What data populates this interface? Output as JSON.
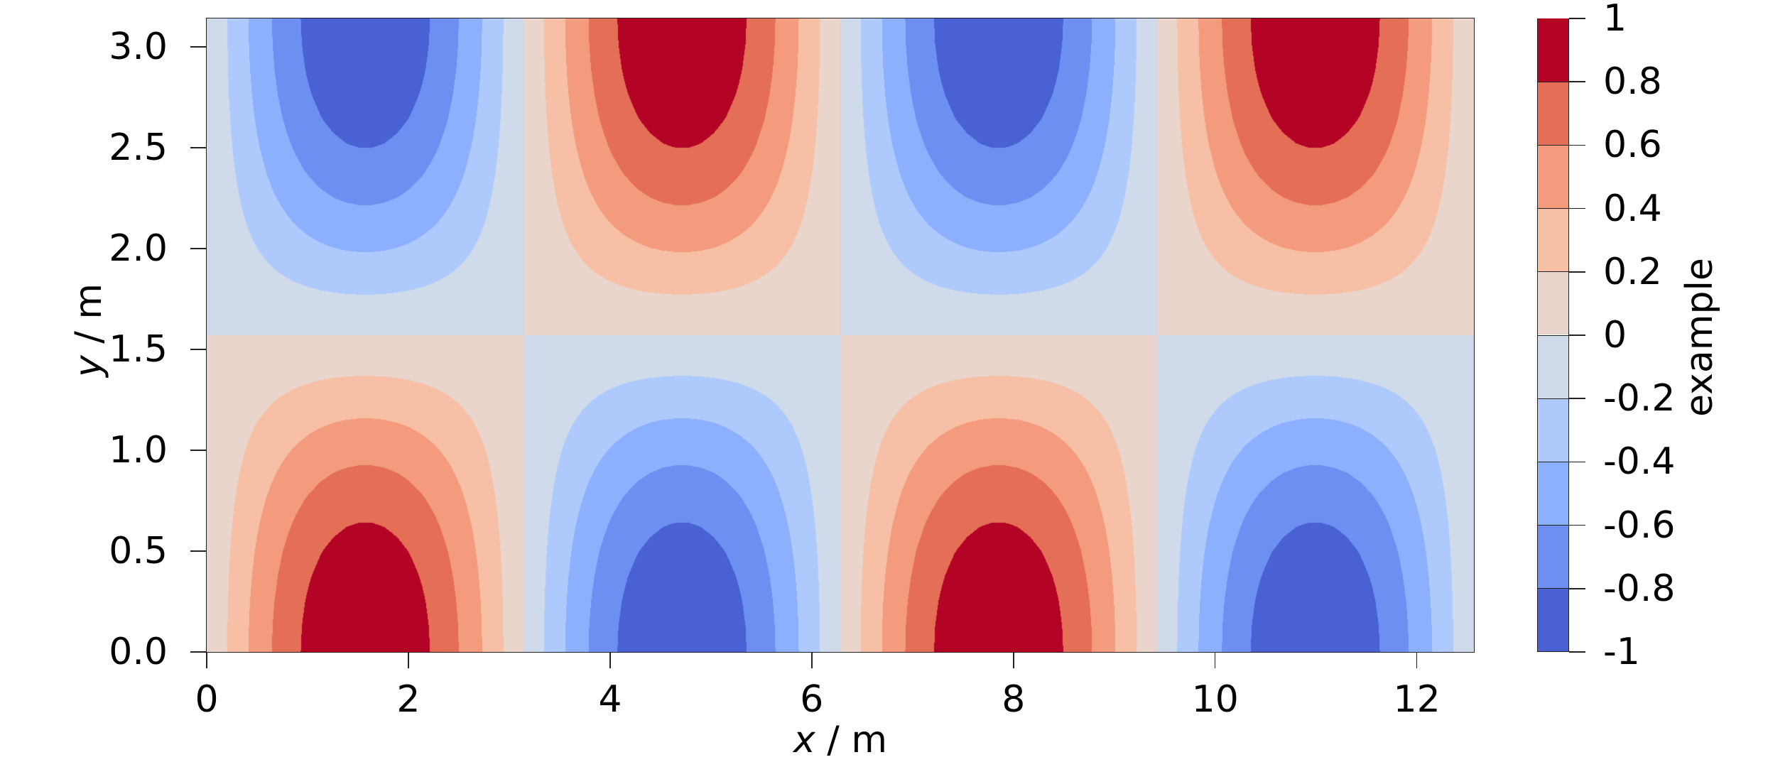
{
  "chart_data": {
    "type": "contourf",
    "title": "",
    "function": "z = sin(x) * cos(y)",
    "x_range": [
      0,
      12.566
    ],
    "y_range": [
      0,
      3.1416
    ],
    "xlabel": {
      "var": "x",
      "unit": " / m"
    },
    "ylabel": {
      "var": "y",
      "unit": " / m"
    },
    "xlim": [
      0,
      12.566
    ],
    "ylim": [
      0,
      3.1416
    ],
    "xticks": [
      0,
      2,
      4,
      6,
      8,
      10,
      12
    ],
    "xtick_labels": [
      "0",
      "2",
      "4",
      "6",
      "8",
      "10",
      "12"
    ],
    "yticks": [
      0.0,
      0.5,
      1.0,
      1.5,
      2.0,
      2.5,
      3.0
    ],
    "ytick_labels": [
      "0.0",
      "0.5",
      "1.0",
      "1.5",
      "2.0",
      "2.5",
      "3.0"
    ],
    "grid_resolution": 25,
    "levels": [
      -1,
      -0.8,
      -0.6,
      -0.4,
      -0.2,
      0,
      0.2,
      0.4,
      0.6,
      0.8,
      1
    ],
    "level_colors": [
      "#4961d2",
      "#6c8ff1",
      "#8db0fe",
      "#aec9fc",
      "#cfdaea",
      "#e9d5cb",
      "#f6bfa6",
      "#f39b7c",
      "#e46e56",
      "#b40426"
    ],
    "colormap": "coolwarm",
    "grid": false,
    "colorbar": {
      "label": "example",
      "ticks": [
        1,
        0.8,
        0.6,
        0.4,
        0.2,
        0,
        -0.2,
        -0.4,
        -0.6,
        -0.8,
        -1
      ],
      "tick_labels": [
        "1",
        "0.8",
        "0.6",
        "0.4",
        "0.2",
        "0",
        "-0.2",
        "-0.4",
        "-0.6",
        "-0.8",
        "-1"
      ],
      "position": "right"
    },
    "features": [
      {
        "type": "max",
        "value": 1,
        "x": 1.571,
        "y": 0
      },
      {
        "type": "min",
        "value": -1,
        "x": 1.571,
        "y": 3.1416
      },
      {
        "type": "min",
        "value": -1,
        "x": 4.712,
        "y": 0
      },
      {
        "type": "max",
        "value": 1,
        "x": 4.712,
        "y": 3.1416
      },
      {
        "type": "max",
        "value": 1,
        "x": 7.854,
        "y": 0
      },
      {
        "type": "min",
        "value": -1,
        "x": 7.854,
        "y": 3.1416
      },
      {
        "type": "min",
        "value": -1,
        "x": 10.996,
        "y": 0
      },
      {
        "type": "max",
        "value": 1,
        "x": 10.996,
        "y": 3.1416
      }
    ]
  }
}
